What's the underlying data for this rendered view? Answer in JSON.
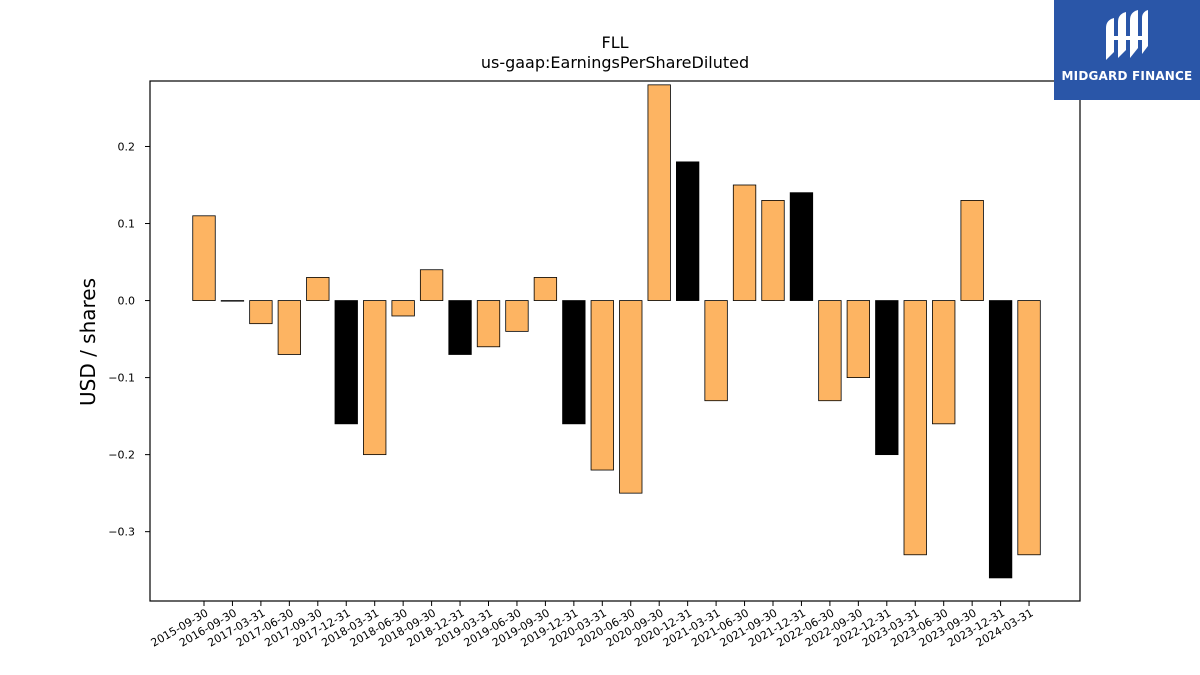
{
  "chart_data": {
    "type": "bar",
    "title": "FLL",
    "subtitle": "us-gaap:EarningsPerShareDiluted",
    "ylabel": "USD / shares",
    "xlabel": "",
    "ylim": [
      -0.39,
      0.285
    ],
    "yticks": [
      -0.3,
      -0.2,
      -0.1,
      0.0,
      0.1,
      0.2
    ],
    "ytick_labels": [
      "−0.3",
      "−0.2",
      "−0.1",
      "0.0",
      "0.1",
      "0.2"
    ],
    "grid": false,
    "categories": [
      "2015-09-30",
      "2016-09-30",
      "2017-03-31",
      "2017-06-30",
      "2017-09-30",
      "2017-12-31",
      "2018-03-31",
      "2018-06-30",
      "2018-09-30",
      "2018-12-31",
      "2019-03-31",
      "2019-06-30",
      "2019-09-30",
      "2019-12-31",
      "2020-03-31",
      "2020-06-30",
      "2020-09-30",
      "2020-12-31",
      "2021-03-31",
      "2021-06-30",
      "2021-09-30",
      "2021-12-31",
      "2022-06-30",
      "2022-09-30",
      "2022-12-31",
      "2023-03-31",
      "2023-06-30",
      "2023-09-30",
      "2023-12-31",
      "2024-03-31"
    ],
    "values": [
      0.11,
      0.0,
      -0.03,
      -0.07,
      0.03,
      -0.16,
      -0.2,
      -0.02,
      0.04,
      -0.07,
      -0.06,
      -0.04,
      0.03,
      -0.16,
      -0.22,
      -0.25,
      0.28,
      0.18,
      -0.13,
      0.15,
      0.13,
      0.14,
      -0.13,
      -0.1,
      -0.2,
      -0.33,
      -0.16,
      0.13,
      -0.36,
      -0.33
    ],
    "highlight": [
      false,
      false,
      false,
      false,
      false,
      true,
      false,
      false,
      false,
      true,
      false,
      false,
      false,
      true,
      false,
      false,
      false,
      true,
      false,
      false,
      false,
      true,
      false,
      false,
      true,
      false,
      false,
      false,
      true,
      false
    ],
    "colors": {
      "normal": "#fdb462",
      "highlight": "#000000",
      "edge": "#000000"
    }
  },
  "logo": {
    "text": "MIDGARD FINANCE",
    "background": "#2a56a8"
  }
}
